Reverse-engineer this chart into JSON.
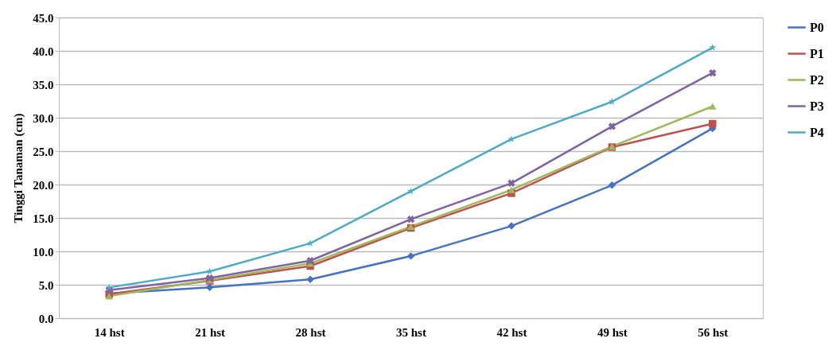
{
  "chart_data": {
    "type": "line",
    "ylabel": "Tinggi Tanaman (cm)",
    "categories": [
      "14 hst",
      "21 hst",
      "28 hst",
      "35 hst",
      "42 hst",
      "49 hst",
      "56 hst"
    ],
    "series": [
      {
        "name": "P0",
        "color": "#4472c4",
        "marker": "diamond",
        "values": [
          3.7,
          4.6,
          5.8,
          9.3,
          13.8,
          19.9,
          28.4
        ]
      },
      {
        "name": "P1",
        "color": "#c0504d",
        "marker": "square",
        "values": [
          3.6,
          5.6,
          7.8,
          13.5,
          18.7,
          25.6,
          29.1
        ]
      },
      {
        "name": "P2",
        "color": "#9bbb59",
        "marker": "triangle",
        "values": [
          3.3,
          5.7,
          8.2,
          13.7,
          19.2,
          25.7,
          31.7
        ]
      },
      {
        "name": "P3",
        "color": "#8064a2",
        "marker": "cross",
        "values": [
          4.2,
          6.0,
          8.6,
          14.8,
          20.2,
          28.7,
          36.7
        ]
      },
      {
        "name": "P4",
        "color": "#4bacc6",
        "marker": "star",
        "values": [
          4.6,
          7.0,
          11.2,
          19.0,
          26.8,
          32.4,
          40.5
        ]
      }
    ],
    "ylim": [
      0,
      45
    ],
    "yticks": [
      {
        "value": 0,
        "label": "0.0"
      },
      {
        "value": 5,
        "label": "5.0"
      },
      {
        "value": 10,
        "label": "10.0"
      },
      {
        "value": 15,
        "label": "15.0"
      },
      {
        "value": 20,
        "label": "20.0"
      },
      {
        "value": 25,
        "label": "25.0"
      },
      {
        "value": 30,
        "label": "30.0"
      },
      {
        "value": 35,
        "label": "35.0"
      },
      {
        "value": 40,
        "label": "40.0"
      },
      {
        "value": 45,
        "label": "45.0"
      }
    ],
    "grid": "y",
    "legend": "right",
    "line_style": "solid"
  }
}
